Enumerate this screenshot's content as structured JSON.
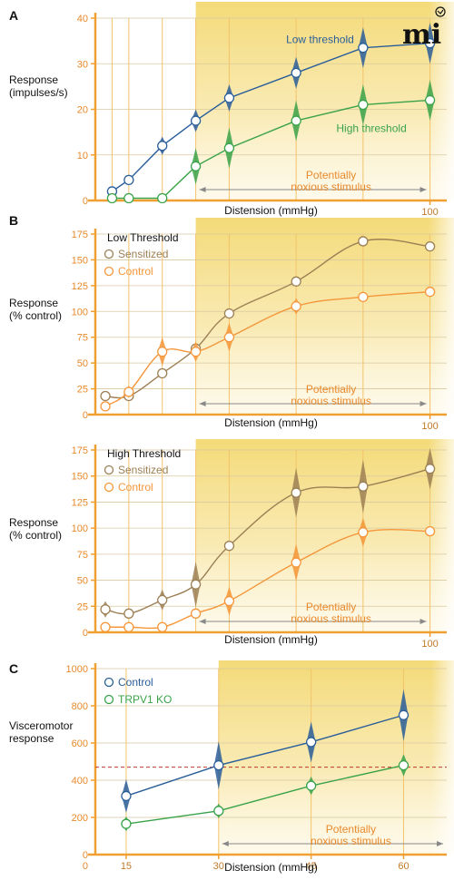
{
  "colors": {
    "axis": "#f0a030",
    "gridV": "#f3c36a",
    "gridH": "#d9c9a0",
    "blue": "#2a5e9a",
    "green": "#3aa34a",
    "brown": "#9c8055",
    "orange": "#f5963a",
    "shade": "#f3d870",
    "dash": "#c0392b"
  },
  "logo_text": "mi",
  "chart_data": [
    {
      "panel": "A",
      "type": "line",
      "ylabel": [
        "Response",
        "(impulses/s)"
      ],
      "xlabel": "Distension (mmHg)",
      "xlim": [
        0,
        105
      ],
      "ylim": [
        0,
        40
      ],
      "yticks": [
        0,
        10,
        20,
        30,
        40
      ],
      "x_tick_labels": [
        {
          "x": 100,
          "label": "100"
        }
      ],
      "vlines": [
        5,
        10,
        20,
        30,
        40,
        60,
        80,
        100
      ],
      "shade_from": 30,
      "annotation": {
        "lines": [
          "Potentially",
          "noxious stimulus"
        ],
        "from": 30,
        "to": 100
      },
      "series": [
        {
          "name": "Low threshold",
          "color_key": "blue",
          "x": [
            5,
            10,
            20,
            30,
            40,
            60,
            80,
            100
          ],
          "y": [
            2,
            4.5,
            12,
            17.5,
            22.5,
            28,
            33.5,
            34.5
          ],
          "err": [
            0,
            1.2,
            2,
            2.5,
            3,
            3.5,
            4.5,
            4.5
          ],
          "label_pos": {
            "x": 57,
            "y": 34.5
          }
        },
        {
          "name": "High threshold",
          "color_key": "green",
          "x": [
            5,
            10,
            20,
            30,
            40,
            60,
            80,
            100
          ],
          "y": [
            0.5,
            0.5,
            0.5,
            7.5,
            11.5,
            17.5,
            21,
            22
          ],
          "err": [
            0,
            0,
            0,
            4,
            4.5,
            4.5,
            4.5,
            4.5
          ],
          "label_pos": {
            "x": 72,
            "y": 15
          }
        }
      ]
    },
    {
      "panel": "B",
      "type": "line",
      "title": "Low Threshold",
      "ylabel": [
        "Response",
        "(% control)"
      ],
      "xlabel": "Distension (mmHg)",
      "xlim": [
        0,
        105
      ],
      "ylim": [
        0,
        175
      ],
      "yticks": [
        0,
        25,
        50,
        75,
        100,
        125,
        150,
        175
      ],
      "x_tick_labels": [
        {
          "x": 100,
          "label": "100"
        }
      ],
      "vlines": [
        10,
        20,
        30,
        40,
        60,
        80,
        100
      ],
      "shade_from": 30,
      "annotation": {
        "lines": [
          "Potentially",
          "noxious stimulus"
        ],
        "from": 30,
        "to": 100
      },
      "series": [
        {
          "name": "Sensitized",
          "color_key": "brown",
          "x": [
            3,
            10,
            20,
            30,
            40,
            60,
            80,
            100
          ],
          "y": [
            18,
            18,
            40,
            64,
            98,
            129,
            168,
            163
          ],
          "err": [
            0,
            0,
            0,
            0,
            0,
            0,
            0,
            0
          ]
        },
        {
          "name": "Control",
          "color_key": "orange",
          "x": [
            3,
            10,
            20,
            30,
            40,
            60,
            80,
            100
          ],
          "y": [
            8,
            22,
            61,
            61,
            75,
            105,
            114,
            119
          ],
          "err": [
            0,
            6,
            14,
            10,
            14,
            8,
            0,
            0
          ]
        }
      ]
    },
    {
      "panel": "",
      "type": "line",
      "title": "High Threshold",
      "ylabel": [
        "Response",
        "(% control)"
      ],
      "xlabel": "Distension (mmHg)",
      "xlim": [
        0,
        105
      ],
      "ylim": [
        0,
        175
      ],
      "yticks": [
        0,
        25,
        50,
        75,
        100,
        125,
        150,
        175
      ],
      "x_tick_labels": [
        {
          "x": 100,
          "label": "100"
        }
      ],
      "vlines": [
        10,
        20,
        30,
        40,
        60,
        80,
        100
      ],
      "shade_from": 30,
      "annotation": {
        "lines": [
          "Potentially",
          "noxious stimulus"
        ],
        "from": 30,
        "to": 100
      },
      "series": [
        {
          "name": "Sensitized",
          "color_key": "brown",
          "x": [
            3,
            10,
            20,
            30,
            40,
            60,
            80,
            100
          ],
          "y": [
            22,
            18,
            31,
            46,
            83,
            134,
            140,
            157
          ],
          "err": [
            8,
            0,
            10,
            22,
            0,
            24,
            26,
            20
          ]
        },
        {
          "name": "Control",
          "color_key": "orange",
          "x": [
            3,
            10,
            20,
            30,
            40,
            60,
            80,
            100
          ],
          "y": [
            5,
            5,
            5,
            18,
            30,
            67,
            96,
            97
          ],
          "err": [
            0,
            0,
            0,
            0,
            14,
            18,
            14,
            0
          ]
        }
      ]
    },
    {
      "panel": "C",
      "type": "line",
      "ylabel": [
        "Visceromotor",
        "response"
      ],
      "xlabel": "Distension (mmHg)",
      "xlim": [
        10,
        67
      ],
      "ylim": [
        0,
        1000
      ],
      "yticks": [
        0,
        200,
        400,
        600,
        800,
        1000
      ],
      "x_tick_labels": [
        {
          "x": 15,
          "label": "15"
        },
        {
          "x": 30,
          "label": "30"
        },
        {
          "x": 45,
          "label": "45"
        },
        {
          "x": 60,
          "label": "60"
        }
      ],
      "vlines": [
        15,
        30,
        45,
        60
      ],
      "shade_from": 30,
      "dashed_y": 470,
      "annotation": {
        "lines": [
          "Potentially",
          "noxious stimulus"
        ],
        "from": 30,
        "to": 67
      },
      "series": [
        {
          "name": "Control",
          "color_key": "blue",
          "x": [
            15,
            30,
            45,
            60
          ],
          "y": [
            315,
            480,
            605,
            750
          ],
          "err": [
            90,
            130,
            110,
            140
          ]
        },
        {
          "name": "TRPV1 KO",
          "color_key": "green",
          "x": [
            15,
            30,
            45,
            60
          ],
          "y": [
            165,
            235,
            370,
            480
          ],
          "err": [
            40,
            40,
            50,
            60
          ]
        }
      ]
    }
  ]
}
